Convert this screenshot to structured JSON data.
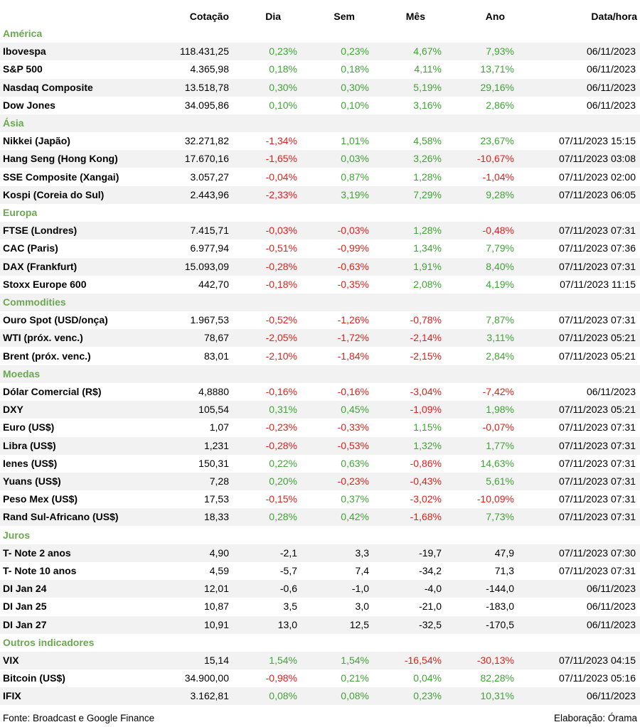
{
  "colors": {
    "positive": "#3fa535",
    "negative": "#e3201b",
    "section": "#6aa84f",
    "neutral": "#000000",
    "alt_row": "#f2f2f2"
  },
  "header": {
    "name": "",
    "cotacao": "Cotação",
    "dia": "Dia",
    "sem": "Sem",
    "mes": "Mês",
    "ano": "Ano",
    "datahora": "Data/hora"
  },
  "sections": [
    {
      "title": "América",
      "rows": [
        {
          "name": "Ibovespa",
          "cotacao": "118.431,25",
          "dia": "0,23%",
          "sem": "0,23%",
          "mes": "4,67%",
          "ano": "7,93%",
          "datahora": "06/11/2023"
        },
        {
          "name": "S&P 500",
          "cotacao": "4.365,98",
          "dia": "0,18%",
          "sem": "0,18%",
          "mes": "4,11%",
          "ano": "13,71%",
          "datahora": "06/11/2023"
        },
        {
          "name": "Nasdaq Composite",
          "cotacao": "13.518,78",
          "dia": "0,30%",
          "sem": "0,30%",
          "mes": "5,19%",
          "ano": "29,16%",
          "datahora": "06/11/2023"
        },
        {
          "name": "Dow Jones",
          "cotacao": "34.095,86",
          "dia": "0,10%",
          "sem": "0,10%",
          "mes": "3,16%",
          "ano": "2,86%",
          "datahora": "06/11/2023"
        }
      ]
    },
    {
      "title": "Ásia",
      "rows": [
        {
          "name": "Nikkei (Japão)",
          "cotacao": "32.271,82",
          "dia": "-1,34%",
          "sem": "1,01%",
          "mes": "4,58%",
          "ano": "23,67%",
          "datahora": "07/11/2023 15:15"
        },
        {
          "name": "Hang Seng (Hong Kong)",
          "cotacao": "17.670,16",
          "dia": "-1,65%",
          "sem": "0,03%",
          "mes": "3,26%",
          "ano": "-10,67%",
          "datahora": "07/11/2023 03:08"
        },
        {
          "name": "SSE Composite (Xangai)",
          "cotacao": "3.057,27",
          "dia": "-0,04%",
          "sem": "0,87%",
          "mes": "1,28%",
          "ano": "-1,04%",
          "datahora": "07/11/2023 02:00"
        },
        {
          "name": "Kospi (Coreia do Sul)",
          "cotacao": "2.443,96",
          "dia": "-2,33%",
          "sem": "3,19%",
          "mes": "7,29%",
          "ano": "9,28%",
          "datahora": "07/11/2023 06:05"
        }
      ]
    },
    {
      "title": "Europa",
      "rows": [
        {
          "name": "FTSE (Londres)",
          "cotacao": "7.415,71",
          "dia": "-0,03%",
          "sem": "-0,03%",
          "mes": "1,28%",
          "ano": "-0,48%",
          "datahora": "07/11/2023 07:31"
        },
        {
          "name": "CAC (Paris)",
          "cotacao": "6.977,94",
          "dia": "-0,51%",
          "sem": "-0,99%",
          "mes": "1,34%",
          "ano": "7,79%",
          "datahora": "07/11/2023 07:36"
        },
        {
          "name": "DAX (Frankfurt)",
          "cotacao": "15.093,09",
          "dia": "-0,28%",
          "sem": "-0,63%",
          "mes": "1,91%",
          "ano": "8,40%",
          "datahora": "07/11/2023 07:31"
        },
        {
          "name": "Stoxx Europe 600",
          "cotacao": "442,70",
          "dia": "-0,18%",
          "sem": "-0,35%",
          "mes": "2,08%",
          "ano": "4,19%",
          "datahora": "07/11/2023 11:15"
        }
      ]
    },
    {
      "title": "Commodities",
      "rows": [
        {
          "name": "Ouro Spot (USD/onça)",
          "cotacao": "1.967,53",
          "dia": "-0,52%",
          "sem": "-1,26%",
          "mes": "-0,78%",
          "ano": "7,87%",
          "datahora": "07/11/2023 07:31"
        },
        {
          "name": "WTI (próx. venc.)",
          "cotacao": "78,67",
          "dia": "-2,05%",
          "sem": "-1,72%",
          "mes": "-2,14%",
          "ano": "3,11%",
          "datahora": "07/11/2023 05:21"
        },
        {
          "name": "Brent (próx. venc.)",
          "cotacao": "83,01",
          "dia": "-2,10%",
          "sem": "-1,84%",
          "mes": "-2,15%",
          "ano": "2,84%",
          "datahora": "07/11/2023 05:21"
        }
      ]
    },
    {
      "title": "Moedas",
      "rows": [
        {
          "name": "Dólar Comercial (R$)",
          "cotacao": "4,8880",
          "dia": "-0,16%",
          "sem": "-0,16%",
          "mes": "-3,04%",
          "ano": "-7,42%",
          "datahora": "06/11/2023"
        },
        {
          "name": "DXY",
          "cotacao": "105,54",
          "dia": "0,31%",
          "sem": "0,45%",
          "mes": "-1,09%",
          "ano": "1,98%",
          "datahora": "07/11/2023 05:21"
        },
        {
          "name": "Euro (US$)",
          "cotacao": "1,07",
          "dia": "-0,23%",
          "sem": "-0,33%",
          "mes": "1,15%",
          "ano": "-0,07%",
          "datahora": "07/11/2023 07:31"
        },
        {
          "name": "Libra (US$)",
          "cotacao": "1,231",
          "dia": "-0,28%",
          "sem": "-0,53%",
          "mes": "1,32%",
          "ano": "1,77%",
          "datahora": "07/11/2023 07:31"
        },
        {
          "name": "Ienes (US$)",
          "cotacao": "150,31",
          "dia": "0,22%",
          "sem": "0,63%",
          "mes": "-0,86%",
          "ano": "14,63%",
          "datahora": "07/11/2023 07:31"
        },
        {
          "name": "Yuans (US$)",
          "cotacao": "7,28",
          "dia": "0,20%",
          "sem": "-0,23%",
          "mes": "-0,43%",
          "ano": "5,61%",
          "datahora": "07/11/2023 07:31"
        },
        {
          "name": "Peso Mex (US$)",
          "cotacao": "17,53",
          "dia": "-0,15%",
          "sem": "0,37%",
          "mes": "-3,02%",
          "ano": "-10,09%",
          "datahora": "07/11/2023 07:31"
        },
        {
          "name": "Rand Sul-Africano (US$)",
          "cotacao": "18,33",
          "dia": "0,28%",
          "sem": "0,42%",
          "mes": "-1,68%",
          "ano": "7,73%",
          "datahora": "07/11/2023 07:31"
        }
      ]
    },
    {
      "title": "Juros",
      "neutral": true,
      "rows": [
        {
          "name": "T- Note 2 anos",
          "cotacao": "4,90",
          "dia": "-2,1",
          "sem": "3,3",
          "mes": "-19,7",
          "ano": "47,9",
          "datahora": "07/11/2023 07:30"
        },
        {
          "name": "T- Note 10 anos",
          "cotacao": "4,59",
          "dia": "-5,7",
          "sem": "7,4",
          "mes": "-34,2",
          "ano": "71,3",
          "datahora": "07/11/2023 07:31"
        },
        {
          "name": "DI Jan 24",
          "cotacao": "12,01",
          "dia": "-0,6",
          "sem": "-1,0",
          "mes": "-4,0",
          "ano": "-144,0",
          "datahora": "06/11/2023"
        },
        {
          "name": "DI Jan 25",
          "cotacao": "10,87",
          "dia": "3,5",
          "sem": "3,0",
          "mes": "-21,0",
          "ano": "-183,0",
          "datahora": "06/11/2023"
        },
        {
          "name": "DI Jan 27",
          "cotacao": "10,91",
          "dia": "13,0",
          "sem": "12,5",
          "mes": "-32,5",
          "ano": "-170,5",
          "datahora": "06/11/2023"
        }
      ]
    },
    {
      "title": "Outros indicadores",
      "rows": [
        {
          "name": "VIX",
          "cotacao": "15,14",
          "dia": "1,54%",
          "sem": "1,54%",
          "mes": "-16,54%",
          "ano": "-30,13%",
          "datahora": "07/11/2023 04:15"
        },
        {
          "name": "Bitcoin (US$)",
          "cotacao": "34.900,00",
          "dia": "-0,98%",
          "sem": "0,21%",
          "mes": "0,04%",
          "ano": "82,28%",
          "datahora": "07/11/2023 05:16"
        },
        {
          "name": "IFIX",
          "cotacao": "3.162,81",
          "dia": "0,08%",
          "sem": "0,08%",
          "mes": "0,23%",
          "ano": "10,31%",
          "datahora": "06/11/2023"
        }
      ]
    }
  ],
  "footer": {
    "source": "Fonte: Broadcast e Google Finance",
    "credit": "Elaboração: Órama"
  }
}
